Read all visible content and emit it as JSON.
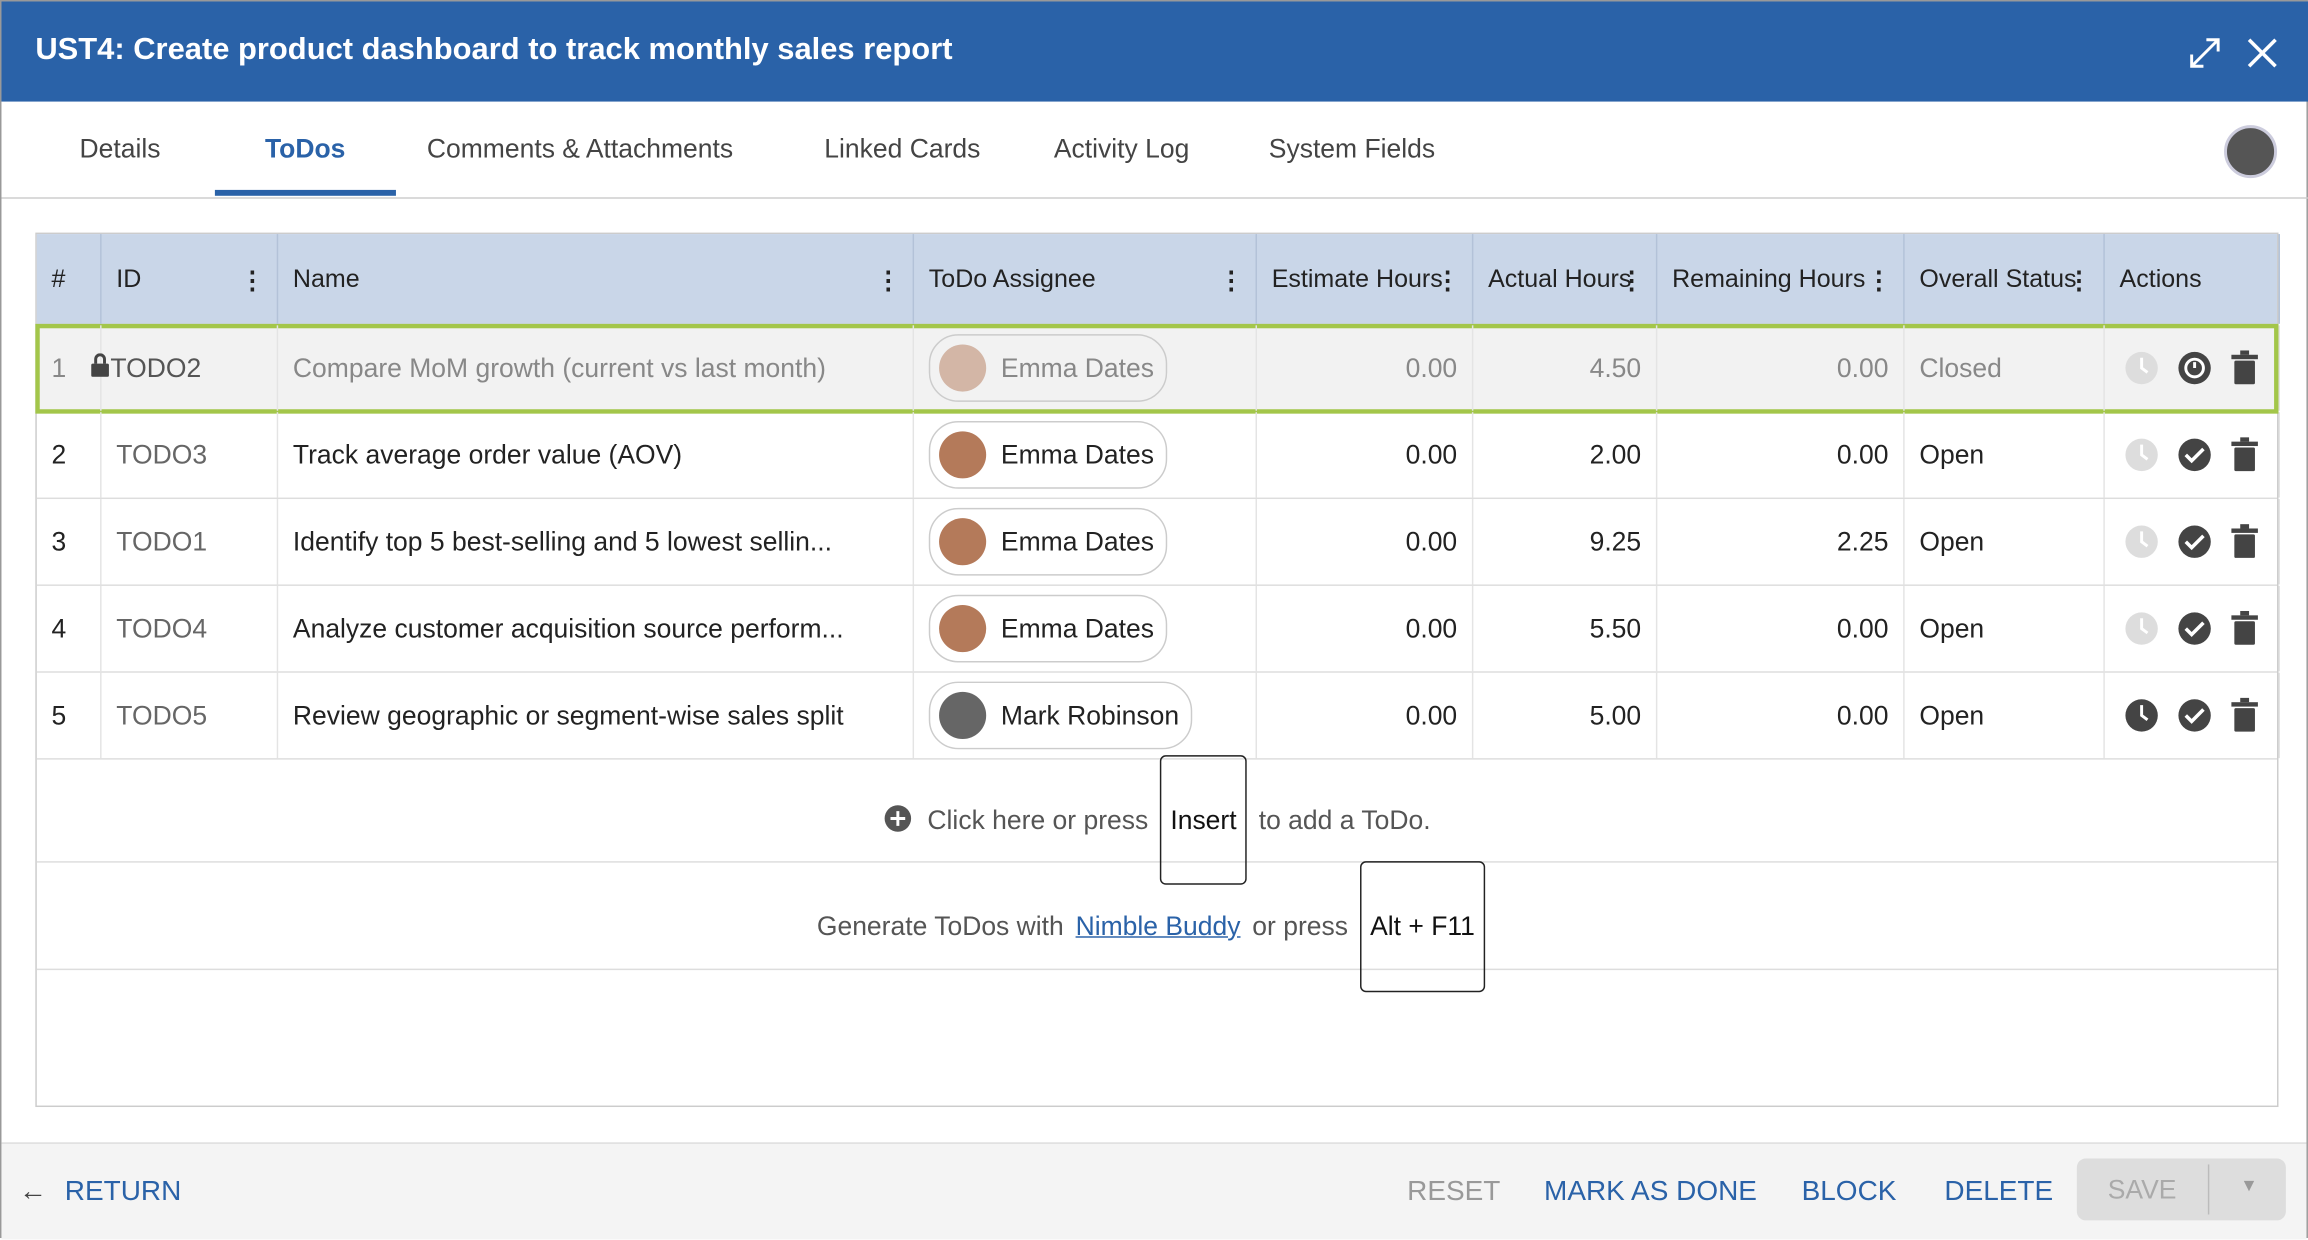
{
  "header": {
    "title": "UST4: Create product dashboard to track monthly sales report"
  },
  "tabs": [
    "Details",
    "ToDos",
    "Comments & Attachments",
    "Linked Cards",
    "Activity Log",
    "System Fields"
  ],
  "active_tab": 1,
  "table": {
    "columns": [
      "#",
      "ID",
      "Name",
      "ToDo Assignee",
      "Estimate Hours",
      "Actual Hours",
      "Remaining Hours",
      "Overall Status",
      "Actions"
    ],
    "rows": [
      [
        "1",
        "TODO2",
        "Compare MoM growth (current vs last month)",
        "Emma Dates",
        "0.00",
        "4.50",
        "0.00",
        "Closed"
      ],
      [
        "2",
        "TODO3",
        "Track average order value (AOV)",
        "Emma Dates",
        "0.00",
        "2.00",
        "0.00",
        "Open"
      ],
      [
        "3",
        "TODO1",
        "Identify top 5 best-selling and 5 lowest sellin...",
        "Emma Dates",
        "0.00",
        "9.25",
        "2.25",
        "Open"
      ],
      [
        "4",
        "TODO4",
        "Analyze customer acquisition source perform...",
        "Emma Dates",
        "0.00",
        "5.50",
        "0.00",
        "Open"
      ],
      [
        "5",
        "TODO5",
        "Review geographic or segment-wise sales split",
        "Mark Robinson",
        "0.00",
        "5.00",
        "0.00",
        "Open"
      ]
    ]
  },
  "add_hint": {
    "before": "Click here or press",
    "key": "Insert",
    "after": "to add a ToDo."
  },
  "generate_hint": {
    "before": "Generate ToDos with",
    "link": "Nimble Buddy",
    "middle": "or press",
    "key": "Alt + F11"
  },
  "footer": {
    "return": "RETURN",
    "reset": "RESET",
    "mark_as_done": "MARK AS DONE",
    "block": "BLOCK",
    "delete": "DELETE",
    "save": "SAVE"
  }
}
